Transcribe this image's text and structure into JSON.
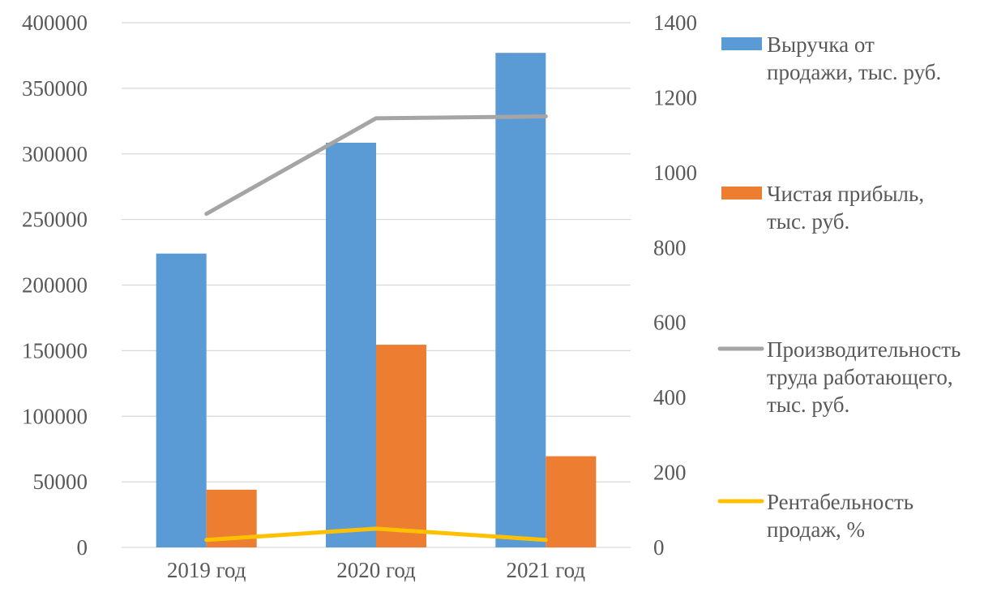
{
  "chart_data": {
    "type": "bar",
    "title": "",
    "categories": [
      "2019 год",
      "2020 год",
      "2021 год"
    ],
    "y_left": {
      "min": 0,
      "max": 400000,
      "step": 50000,
      "ticks": [
        "0",
        "50000",
        "100000",
        "150000",
        "200000",
        "250000",
        "300000",
        "350000",
        "400000"
      ]
    },
    "y_right": {
      "min": 0,
      "max": 1400,
      "step": 200,
      "ticks": [
        "0",
        "200",
        "400",
        "600",
        "800",
        "1000",
        "1200",
        "1400"
      ]
    },
    "grid": true,
    "legend_position": "right",
    "series": [
      {
        "name": "Выручка от продажи, тыс. руб.",
        "name_lines": [
          "Выручка от",
          "продажи, тыс. руб."
        ],
        "type": "bar",
        "axis": "left",
        "color": "#5B9BD5",
        "values": [
          224000,
          308500,
          377000
        ]
      },
      {
        "name": "Чистая прибыль, тыс. руб.",
        "name_lines": [
          "Чистая прибыль,",
          "тыс. руб."
        ],
        "type": "bar",
        "axis": "left",
        "color": "#ED7D31",
        "values": [
          44000,
          154500,
          69500
        ]
      },
      {
        "name": "Производительность труда работающего, тыс. руб.",
        "name_lines": [
          "Производительность",
          "труда работающего,",
          "тыс. руб."
        ],
        "type": "line",
        "axis": "right",
        "color": "#A5A5A5",
        "values": [
          890,
          1145,
          1150
        ]
      },
      {
        "name": "Рентабельность продаж, %",
        "name_lines": [
          "Рентабельность",
          "продаж, %"
        ],
        "type": "line",
        "axis": "right",
        "color": "#FFC000",
        "values": [
          20,
          50,
          20
        ]
      }
    ]
  }
}
